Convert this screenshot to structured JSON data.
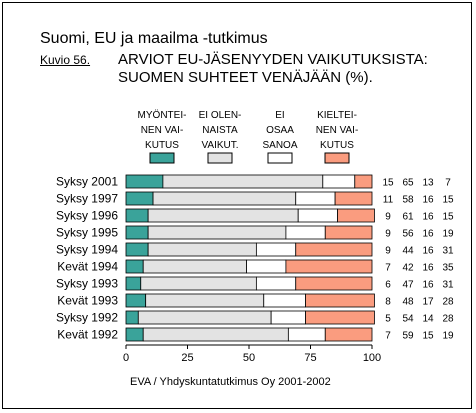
{
  "suptitle": "Suomi, EU ja maailma -tutkimus",
  "figure_label": "Kuvio 56.",
  "title_line1": "ARVIOT EU-JÄSENYYDEN VAIKUTUKSISTA:",
  "title_line2": "SUOMEN SUHTEET VENÄJÄÄN (%).",
  "source": "EVA / Yhdyskuntatutkimus Oy 2001-2002",
  "chart_data": {
    "type": "bar",
    "orientation": "horizontal",
    "stacked": true,
    "categories": [
      "Syksy 2001",
      "Syksy 1997",
      "Syksy 1996",
      "Syksy 1995",
      "Syksy 1994",
      "Kevät 1994",
      "Syksy 1993",
      "Kevät 1993",
      "Syksy 1992",
      "Kevät 1992"
    ],
    "series": [
      {
        "name": "MYÖNTEI-NEN VAI-KUTUS",
        "legend_lines": [
          "MYÖNTEI-",
          "NEN VAI-",
          "KUTUS"
        ],
        "color": "#3aa39a",
        "values": [
          15,
          11,
          9,
          9,
          9,
          7,
          6,
          8,
          5,
          7
        ]
      },
      {
        "name": "EI OLEN-NAISTA VAIKUT.",
        "legend_lines": [
          "EI OLEN-",
          "NAISTA",
          "VAIKUT."
        ],
        "color": "#e3e3e3",
        "values": [
          65,
          58,
          61,
          56,
          44,
          42,
          47,
          48,
          54,
          59
        ]
      },
      {
        "name": "EI OSAA SANOA",
        "legend_lines": [
          "EI",
          "OSAA",
          "SANOA"
        ],
        "color": "#ffffff",
        "values": [
          13,
          16,
          16,
          16,
          16,
          16,
          16,
          17,
          14,
          15
        ]
      },
      {
        "name": "KIELTEI-NEN VAI-KUTUS",
        "legend_lines": [
          "KIELTEI-",
          "NEN VAI-",
          "KUTUS"
        ],
        "color": "#fa9c7f",
        "values": [
          7,
          15,
          15,
          19,
          31,
          35,
          31,
          28,
          28,
          19
        ]
      }
    ],
    "xlim": [
      0,
      100
    ],
    "xticks": [
      0,
      25,
      50,
      75,
      100
    ],
    "legend_position": "top",
    "value_table": "right"
  }
}
